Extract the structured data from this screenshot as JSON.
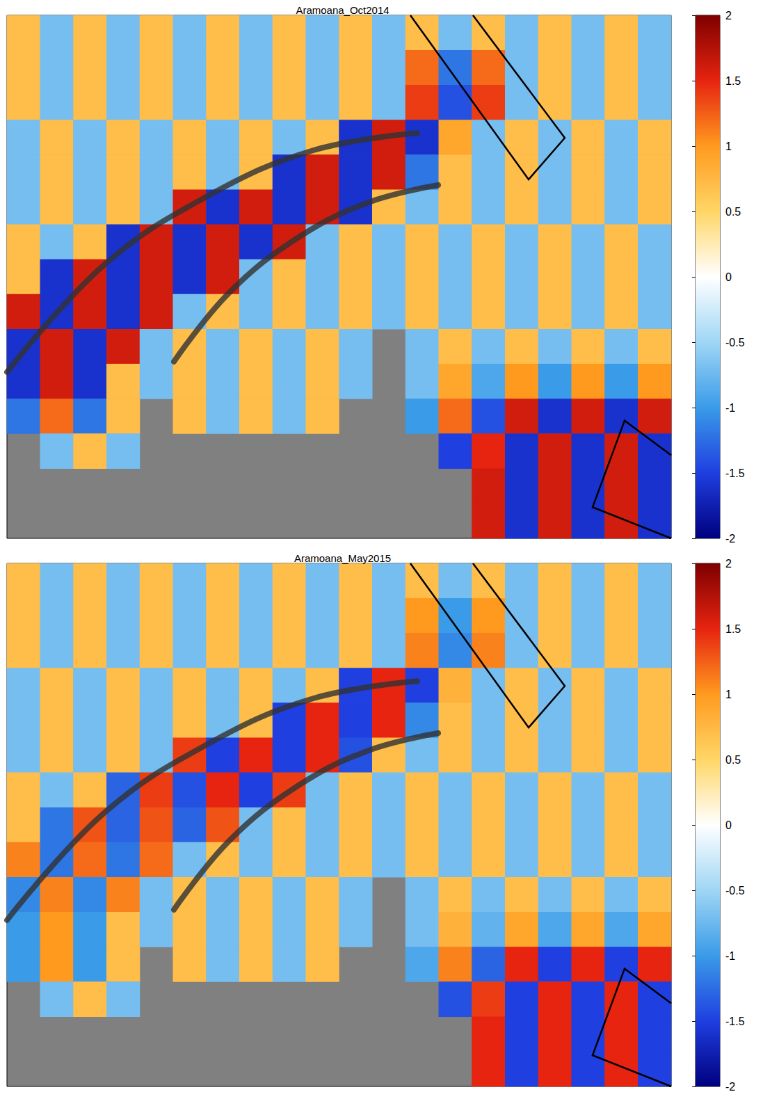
{
  "chart_data": [
    {
      "type": "heatmap",
      "title": "Aramoana_Oct2014",
      "tick_labels": false,
      "cells": [
        [
          0.7,
          -0.7,
          0.7,
          -0.7,
          0.7,
          -0.7,
          0.7,
          -0.7,
          0.7,
          -0.7,
          0.7,
          -0.7,
          0.7,
          -0.7,
          0.7,
          -0.7,
          0.7,
          -0.7,
          0.7,
          -0.7
        ],
        [
          0.7,
          -0.7,
          0.7,
          -0.7,
          0.7,
          -0.7,
          0.7,
          -0.7,
          0.7,
          -0.7,
          0.7,
          -0.7,
          1.2,
          -1.2,
          1.2,
          -0.7,
          0.7,
          -0.7,
          0.7,
          -0.7
        ],
        [
          0.7,
          -0.7,
          0.7,
          -0.7,
          0.7,
          -0.7,
          0.7,
          -0.7,
          0.7,
          -0.7,
          0.7,
          -0.7,
          1.4,
          -1.4,
          1.4,
          -0.7,
          0.7,
          -0.7,
          0.7,
          -0.7
        ],
        [
          -0.7,
          0.7,
          -0.7,
          0.7,
          -0.7,
          0.7,
          -0.7,
          0.7,
          -0.7,
          0.7,
          -1.6,
          1.6,
          -1.6,
          0.9,
          -0.7,
          0.7,
          -0.7,
          0.7,
          -0.7,
          0.7
        ],
        [
          -0.7,
          0.7,
          -0.7,
          0.7,
          -0.7,
          0.7,
          -0.7,
          0.7,
          -1.6,
          1.6,
          -1.6,
          1.6,
          -1.2,
          0.7,
          -0.7,
          0.7,
          -0.7,
          0.7,
          -0.7,
          0.7
        ],
        [
          -0.7,
          0.7,
          -0.7,
          0.7,
          -0.7,
          1.6,
          -1.6,
          1.6,
          -1.6,
          1.6,
          -1.6,
          0.7,
          -0.7,
          0.7,
          -0.7,
          0.7,
          -0.7,
          0.7,
          -0.7,
          0.7
        ],
        [
          0.7,
          -0.7,
          0.7,
          -1.6,
          1.6,
          -1.6,
          1.6,
          -1.6,
          1.6,
          -0.7,
          0.7,
          -0.7,
          0.7,
          -0.7,
          0.7,
          -0.7,
          0.7,
          -0.7,
          0.7,
          -0.7
        ],
        [
          0.7,
          -1.6,
          1.6,
          -1.6,
          1.6,
          -1.6,
          1.6,
          -0.7,
          0.7,
          -0.7,
          0.7,
          -0.7,
          0.7,
          -0.7,
          0.7,
          -0.7,
          0.7,
          -0.7,
          0.7,
          -0.7
        ],
        [
          1.6,
          -1.6,
          1.6,
          -1.6,
          1.6,
          -0.7,
          0.7,
          -0.7,
          0.7,
          -0.7,
          0.7,
          -0.7,
          0.7,
          -0.7,
          0.7,
          -0.7,
          0.7,
          -0.7,
          0.7,
          -0.7
        ],
        [
          -1.6,
          1.6,
          -1.6,
          1.6,
          -0.7,
          0.7,
          -0.7,
          0.7,
          -0.7,
          0.7,
          -0.7,
          null,
          -0.7,
          0.7,
          -0.7,
          0.7,
          -0.7,
          0.7,
          -0.7,
          0.7
        ],
        [
          -1.6,
          1.6,
          -1.6,
          0.7,
          -0.7,
          0.7,
          -0.7,
          0.7,
          -0.7,
          0.7,
          -0.7,
          null,
          -0.7,
          0.9,
          -0.9,
          1.0,
          -1.0,
          1.0,
          -1.0,
          1.0
        ],
        [
          -1.2,
          1.2,
          -1.2,
          0.7,
          null,
          0.7,
          -0.7,
          0.7,
          -0.7,
          0.7,
          null,
          null,
          -1.0,
          1.2,
          -1.4,
          1.6,
          -1.6,
          1.6,
          -1.6,
          1.6
        ],
        [
          null,
          -0.7,
          0.7,
          -0.7,
          null,
          null,
          null,
          null,
          null,
          null,
          null,
          null,
          null,
          -1.5,
          1.5,
          -1.6,
          1.6,
          -1.6,
          1.6,
          -1.6
        ],
        [
          null,
          null,
          null,
          null,
          null,
          null,
          null,
          null,
          null,
          null,
          null,
          null,
          null,
          null,
          1.6,
          -1.6,
          1.6,
          -1.6,
          1.6,
          -1.6
        ],
        [
          null,
          null,
          null,
          null,
          null,
          null,
          null,
          null,
          null,
          null,
          null,
          null,
          null,
          null,
          1.6,
          -1.6,
          1.6,
          -1.6,
          1.6,
          -1.6
        ]
      ],
      "colorbar": {
        "range": [
          -2,
          2
        ],
        "ticks": [
          -2,
          -1.5,
          -1,
          -0.5,
          0,
          0.5,
          1,
          1.5,
          2
        ]
      }
    },
    {
      "type": "heatmap",
      "title": "Aramoana_May2015",
      "tick_labels": false,
      "cells": [
        [
          0.7,
          -0.7,
          0.7,
          -0.7,
          0.7,
          -0.7,
          0.7,
          -0.7,
          0.7,
          -0.7,
          0.7,
          -0.7,
          0.7,
          -0.7,
          0.7,
          -0.7,
          0.7,
          -0.7,
          0.7,
          -0.7
        ],
        [
          0.7,
          -0.7,
          0.7,
          -0.7,
          0.7,
          -0.7,
          0.7,
          -0.7,
          0.7,
          -0.7,
          0.7,
          -0.7,
          1.0,
          -1.0,
          1.0,
          -0.7,
          0.7,
          -0.7,
          0.7,
          -0.7
        ],
        [
          0.7,
          -0.7,
          0.7,
          -0.7,
          0.7,
          -0.7,
          0.7,
          -0.7,
          0.7,
          -0.7,
          0.7,
          -0.7,
          1.1,
          -1.1,
          1.1,
          -0.7,
          0.7,
          -0.7,
          0.7,
          -0.7
        ],
        [
          -0.7,
          0.7,
          -0.7,
          0.7,
          -0.7,
          0.7,
          -0.7,
          0.7,
          -0.7,
          0.7,
          -1.5,
          1.5,
          -1.5,
          0.8,
          -0.7,
          0.7,
          -0.7,
          0.7,
          -0.7,
          0.7
        ],
        [
          -0.7,
          0.7,
          -0.7,
          0.7,
          -0.7,
          0.7,
          -0.7,
          0.7,
          -1.5,
          1.5,
          -1.5,
          1.5,
          -1.1,
          0.7,
          -0.7,
          0.7,
          -0.7,
          0.7,
          -0.7,
          0.7
        ],
        [
          -0.7,
          0.7,
          -0.7,
          0.7,
          -0.7,
          1.4,
          -1.5,
          1.5,
          -1.5,
          1.5,
          -1.4,
          0.7,
          -0.7,
          0.7,
          -0.7,
          0.7,
          -0.7,
          0.7,
          -0.7,
          0.7
        ],
        [
          0.7,
          -0.7,
          0.7,
          -1.3,
          1.4,
          -1.4,
          1.5,
          -1.5,
          1.4,
          -0.7,
          0.7,
          -0.7,
          0.7,
          -0.7,
          0.7,
          -0.7,
          0.7,
          -0.7,
          0.7,
          -0.7
        ],
        [
          0.7,
          -1.2,
          1.3,
          -1.3,
          1.3,
          -1.3,
          1.3,
          -0.7,
          0.7,
          -0.7,
          0.7,
          -0.7,
          0.7,
          -0.7,
          0.7,
          -0.7,
          0.7,
          -0.7,
          0.7,
          -0.7
        ],
        [
          1.1,
          -1.2,
          1.2,
          -1.2,
          1.2,
          -0.7,
          0.7,
          -0.7,
          0.7,
          -0.7,
          0.7,
          -0.7,
          0.7,
          -0.7,
          0.7,
          -0.7,
          0.7,
          -0.7,
          0.7,
          -0.7
        ],
        [
          -1.1,
          1.1,
          -1.1,
          1.1,
          -0.7,
          0.7,
          -0.7,
          0.7,
          -0.7,
          0.7,
          -0.7,
          null,
          -0.7,
          0.7,
          -0.7,
          0.7,
          -0.7,
          0.7,
          -0.7,
          0.7
        ],
        [
          -1.0,
          1.0,
          -1.0,
          0.7,
          -0.7,
          0.7,
          -0.7,
          0.7,
          -0.7,
          0.7,
          -0.7,
          null,
          -0.7,
          0.8,
          -0.8,
          0.9,
          -0.9,
          0.9,
          -0.9,
          0.9
        ],
        [
          -1.0,
          1.0,
          -1.0,
          0.7,
          null,
          0.7,
          -0.7,
          0.7,
          -0.7,
          0.7,
          null,
          null,
          -0.9,
          1.1,
          -1.3,
          1.5,
          -1.5,
          1.5,
          -1.5,
          1.5
        ],
        [
          null,
          -0.7,
          0.7,
          -0.7,
          null,
          null,
          null,
          null,
          null,
          null,
          null,
          null,
          null,
          -1.4,
          1.4,
          -1.5,
          1.5,
          -1.5,
          1.5,
          -1.5
        ],
        [
          null,
          null,
          null,
          null,
          null,
          null,
          null,
          null,
          null,
          null,
          null,
          null,
          null,
          null,
          1.5,
          -1.5,
          1.5,
          -1.5,
          1.5,
          -1.5
        ],
        [
          null,
          null,
          null,
          null,
          null,
          null,
          null,
          null,
          null,
          null,
          null,
          null,
          null,
          null,
          1.5,
          -1.5,
          1.5,
          -1.5,
          1.5,
          -1.5
        ]
      ],
      "colorbar": {
        "range": [
          -2,
          2
        ],
        "ticks": [
          -2,
          -1.5,
          -1,
          -0.5,
          0,
          0.5,
          1,
          1.5,
          2
        ]
      }
    }
  ]
}
